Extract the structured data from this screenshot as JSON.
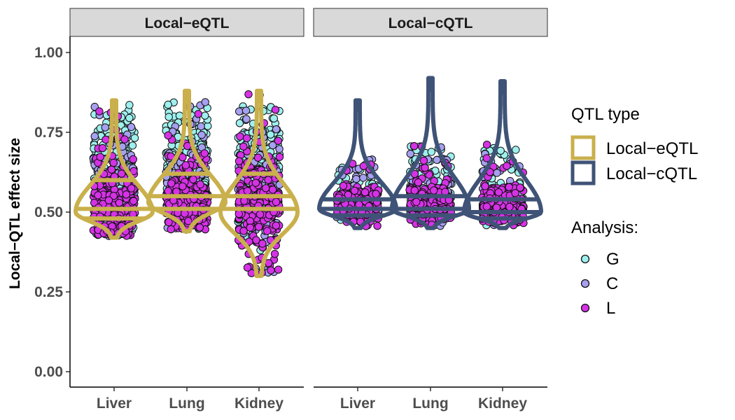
{
  "chart_data": {
    "type": "violin",
    "ylabel": "Local−QTL effect size",
    "xlabel": "",
    "ylim": [
      0,
      1.05
    ],
    "yticks": [
      "0.00",
      "0.25",
      "0.50",
      "0.75",
      "1.00"
    ],
    "ytick_values": [
      0,
      0.25,
      0.5,
      0.75,
      1.0
    ],
    "categories": [
      "Liver",
      "Lung",
      "Kidney"
    ],
    "grid": false,
    "legend_position": "right",
    "panels": [
      {
        "name": "Local−eQTL",
        "violin_color": "#c9b04c",
        "violins": [
          {
            "category": "Liver",
            "min": 0.42,
            "max": 0.85,
            "quantiles": [
              0.48,
              0.51,
              0.6
            ],
            "mode": 0.5
          },
          {
            "category": "Lung",
            "min": 0.44,
            "max": 0.88,
            "quantiles": [
              0.51,
              0.55,
              0.62
            ],
            "mode": 0.53
          },
          {
            "category": "Kidney",
            "min": 0.3,
            "max": 0.88,
            "quantiles": [
              0.51,
              0.55,
              0.62
            ],
            "mode": 0.5
          }
        ]
      },
      {
        "name": "Local−cQTL",
        "violin_color": "#3f5377",
        "violins": [
          {
            "category": "Liver",
            "min": 0.45,
            "max": 0.85,
            "quantiles": [
              0.49,
              0.51,
              0.54
            ],
            "mode": 0.51
          },
          {
            "category": "Lung",
            "min": 0.45,
            "max": 0.92,
            "quantiles": [
              0.49,
              0.51,
              0.55
            ],
            "mode": 0.51
          },
          {
            "category": "Kidney",
            "min": 0.45,
            "max": 0.91,
            "quantiles": [
              0.48,
              0.5,
              0.54
            ],
            "mode": 0.5
          }
        ]
      }
    ],
    "legend": {
      "qtl_type": {
        "title": "QTL type",
        "items": [
          {
            "label": "Local−eQTL",
            "color": "#c9b04c"
          },
          {
            "label": "Local−cQTL",
            "color": "#3f5377"
          }
        ]
      },
      "analysis": {
        "title": "Analysis:",
        "items": [
          {
            "label": "G",
            "color": "#9ef0ee"
          },
          {
            "label": "C",
            "color": "#a7a0f0"
          },
          {
            "label": "L",
            "color": "#d532e6"
          }
        ]
      }
    }
  }
}
